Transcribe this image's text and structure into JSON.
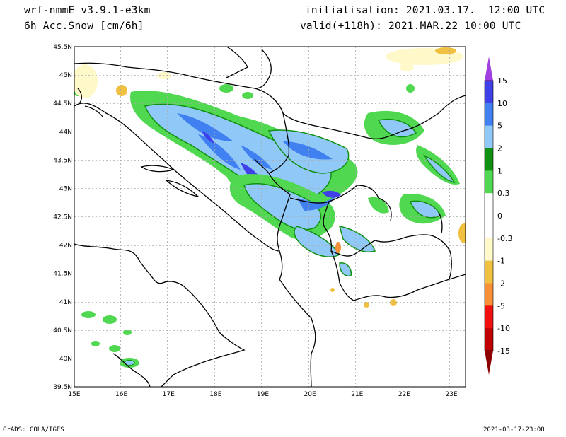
{
  "header": {
    "model": "wrf-nmmE_v3.9.1-e3km",
    "variable": "6h Acc.Snow [cm/6h]",
    "initialisation": "initialisation: 2021.03.17.  12:00 UTC",
    "valid": "valid(+118h): 2021.MAR.22 10:00 UTC"
  },
  "footer": {
    "software": "GrADS: COLA/IGES",
    "timestamp": "2021-03-17-23:08"
  },
  "map": {
    "lon_range": [
      15,
      23.3
    ],
    "lat_range": [
      39.5,
      45.5
    ],
    "lon_ticks": [
      "15E",
      "16E",
      "17E",
      "18E",
      "19E",
      "20E",
      "21E",
      "22E",
      "23E"
    ],
    "lat_ticks": [
      "39.5N",
      "40N",
      "40.5N",
      "41N",
      "41.5N",
      "42N",
      "42.5N",
      "43N",
      "43.5N",
      "44N",
      "44.5N",
      "45N",
      "45.5N"
    ],
    "grid": true,
    "grid_style": "dotted"
  },
  "colorbar": {
    "labels": [
      "15",
      "10",
      "5",
      "2",
      "1",
      "0.3",
      "0",
      "-0.3",
      "-1",
      "-2",
      "-5",
      "-10",
      "-15"
    ],
    "colors": {
      "over": "#a040e0",
      "bins": [
        "#4040e8",
        "#4080f0",
        "#90c8f8",
        "#109010",
        "#50d850",
        "#ffffff",
        "#ffffff",
        "#fff8c8",
        "#f0c040",
        "#f89038",
        "#f01010",
        "#c00000"
      ],
      "under": "#8c0000"
    }
  }
}
